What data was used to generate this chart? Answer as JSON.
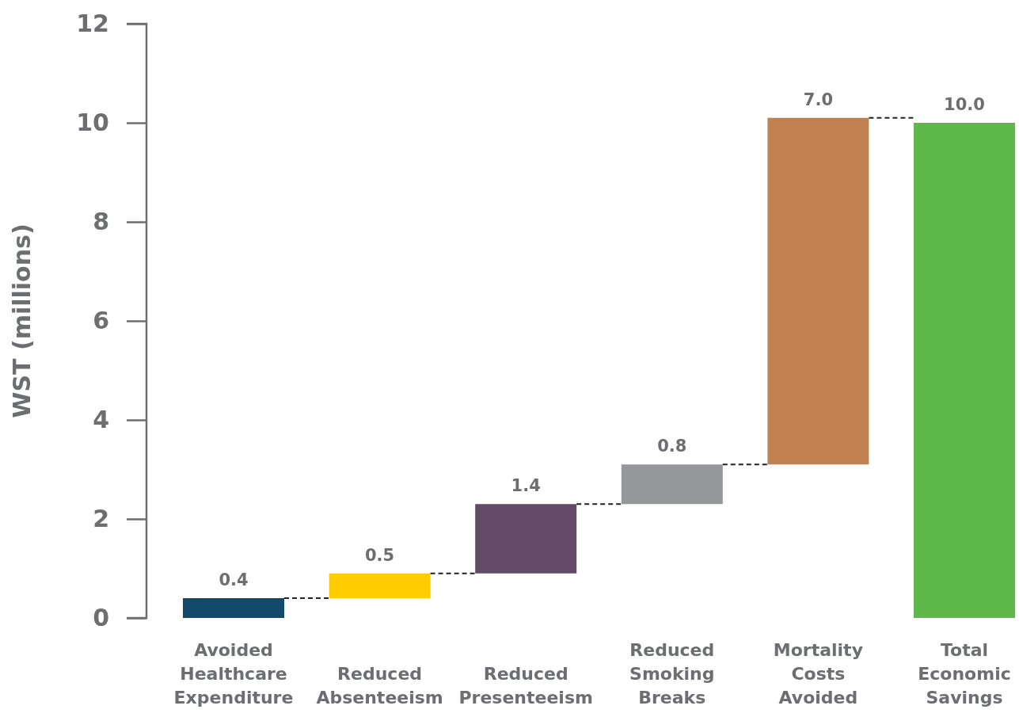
{
  "chart_data": {
    "type": "bar",
    "ylabel": "WST (millions)",
    "categories": [
      "Avoided Healthcare Expenditure",
      "Reduced Absenteeism",
      "Reduced Presenteeism",
      "Reduced Smoking Breaks",
      "Mortality Costs Avoided",
      "Total Economic Savings"
    ],
    "values": [
      0.4,
      0.5,
      1.4,
      0.8,
      7.0,
      10.0
    ],
    "base": [
      0,
      0.4,
      0.9,
      2.3,
      3.1,
      0
    ],
    "colors": [
      "#134a6b",
      "#ffcc00",
      "#634a66",
      "#96979a",
      "#c08050",
      "#5fb94a"
    ],
    "value_labels": [
      "0.4",
      "0.5",
      "1.4",
      "0.8",
      "7.0",
      "10.0"
    ],
    "ylim": [
      0,
      12
    ],
    "yticks": [
      0,
      2,
      4,
      6,
      8,
      10,
      12
    ],
    "grid": false
  }
}
